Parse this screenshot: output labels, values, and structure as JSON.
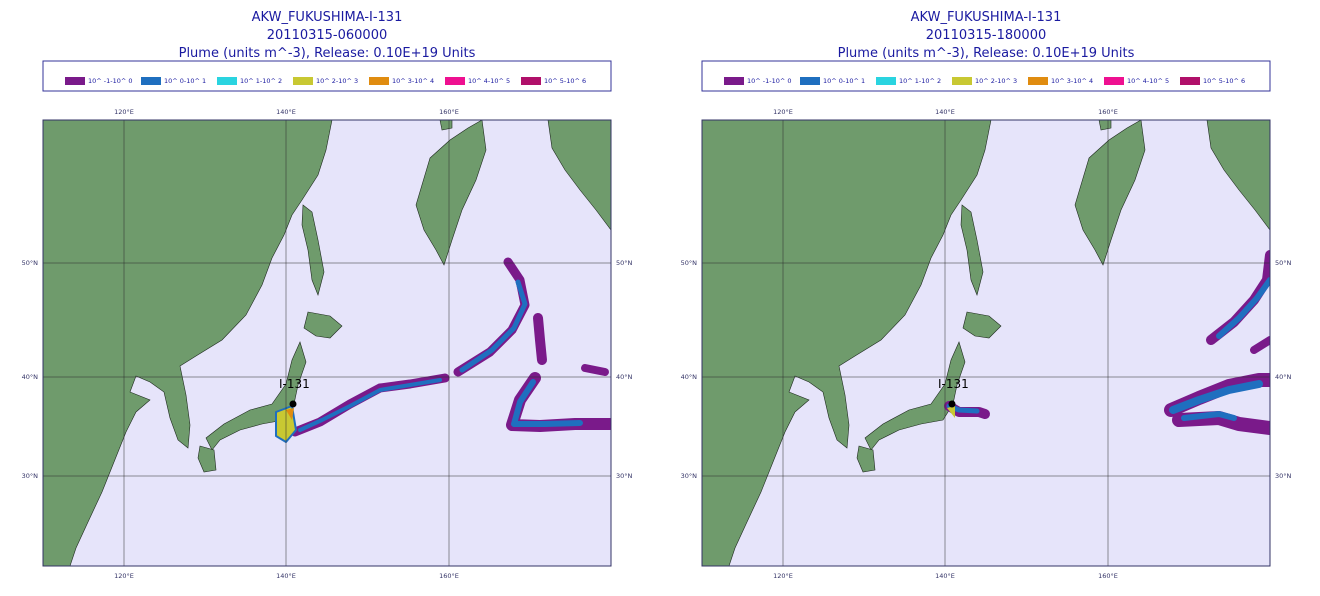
{
  "panels": [
    {
      "title": "AKW_FUKUSHIMA-I-131",
      "date": "20110315-060000",
      "subtitle": "Plume (units m^-3), Release:  0.10E+19 Units",
      "legend": [
        "10^ -1-10^ 0",
        "10^ 0-10^ 1",
        "10^ 1-10^ 2",
        "10^ 2-10^ 3",
        "10^ 3-10^ 4",
        "10^ 4-10^ 5",
        "10^ 5-10^ 6"
      ],
      "lon_labels": [
        "120°E",
        "140°E",
        "160°E"
      ],
      "lat_labels": [
        "50°N",
        "40°N",
        "30°N"
      ],
      "marker_label": "I-131"
    },
    {
      "title": "AKW_FUKUSHIMA-I-131",
      "date": "20110315-180000",
      "subtitle": "Plume (units m^-3), Release:  0.10E+19 Units",
      "legend": [
        "10^ -1-10^ 0",
        "10^ 0-10^ 1",
        "10^ 1-10^ 2",
        "10^ 2-10^ 3",
        "10^ 3-10^ 4",
        "10^ 4-10^ 5",
        "10^ 5-10^ 6"
      ],
      "lon_labels": [
        "120°E",
        "140°E",
        "160°E"
      ],
      "lat_labels": [
        "50°N",
        "40°N",
        "30°N"
      ],
      "marker_label": "I-131"
    }
  ]
}
